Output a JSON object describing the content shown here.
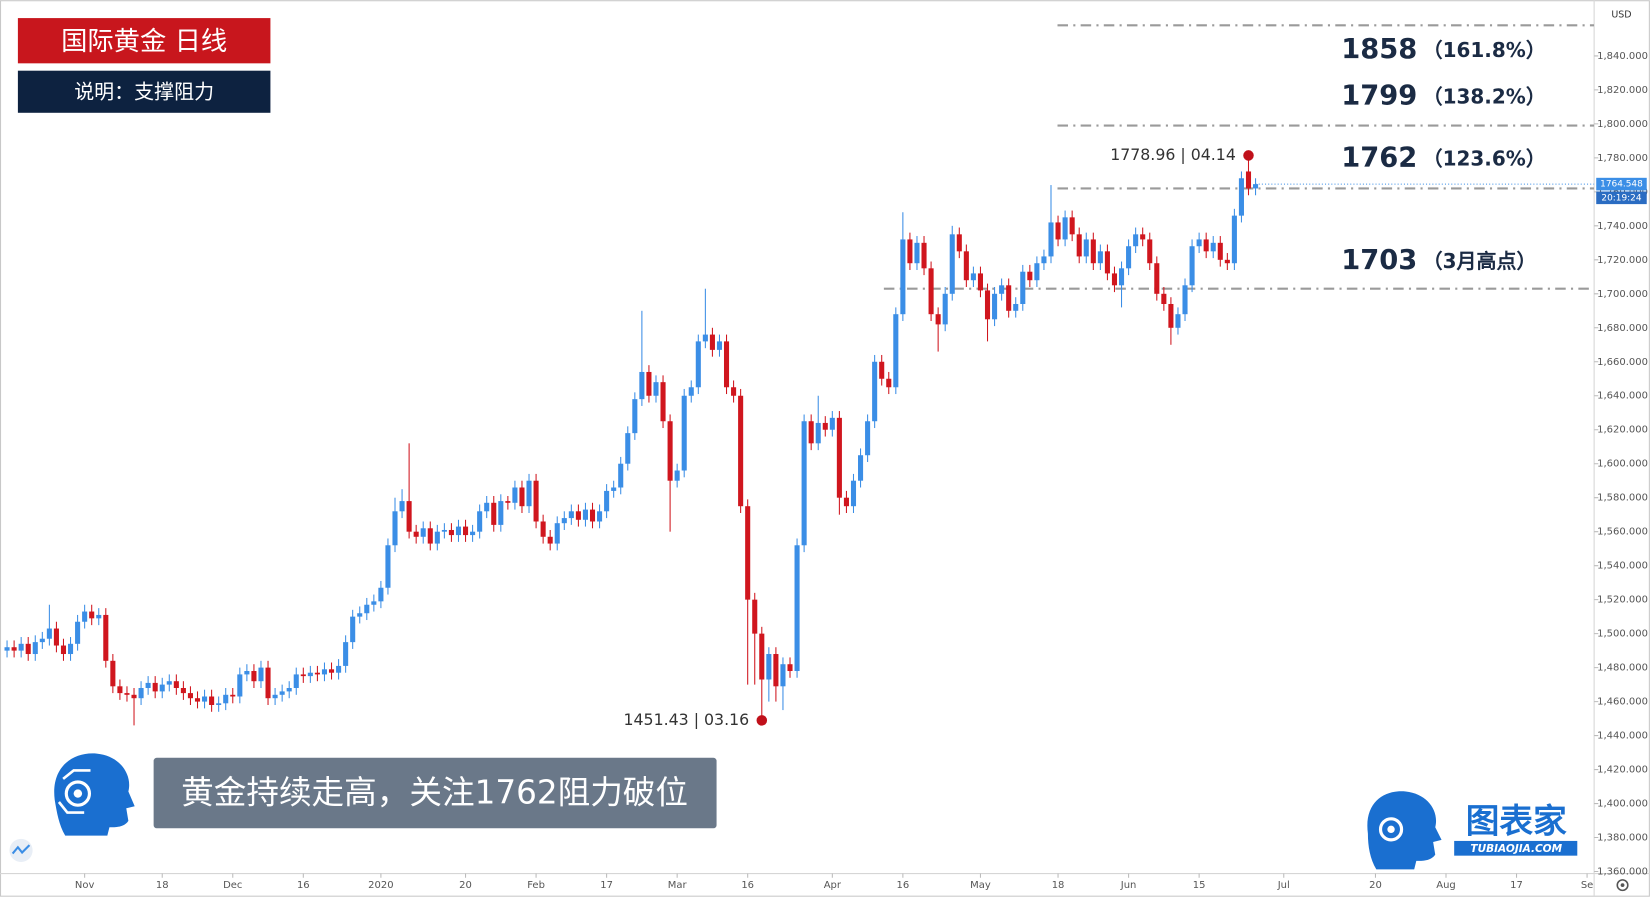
{
  "chart_data": {
    "type": "candlestick",
    "title": "国际黄金  日线",
    "subtitle": "说明：支撑阻力",
    "banner": "黄金持续走高，关注1762阻力破位",
    "brand": "图表家",
    "brand_url": "TUBIAOJIA.COM",
    "currency": "USD",
    "countdown": "20:19:24",
    "up_color": "#3b8ee6",
    "down_color": "#d0161e",
    "xlim": [
      -12,
      214
    ],
    "ylim": [
      1358.8,
      1869.7
    ],
    "xticks": [
      {
        "value": 0,
        "label": "Nov"
      },
      {
        "value": 11,
        "label": "18"
      },
      {
        "value": 21,
        "label": "Dec"
      },
      {
        "value": 31,
        "label": "16"
      },
      {
        "value": 42,
        "label": "2020"
      },
      {
        "value": 54,
        "label": "20"
      },
      {
        "value": 64,
        "label": "Feb"
      },
      {
        "value": 74,
        "label": "17"
      },
      {
        "value": 84,
        "label": "Mar"
      },
      {
        "value": 94,
        "label": "16"
      },
      {
        "value": 106,
        "label": "Apr"
      },
      {
        "value": 116,
        "label": "16"
      },
      {
        "value": 127,
        "label": "May"
      },
      {
        "value": 138,
        "label": "18"
      },
      {
        "value": 148,
        "label": "Jun"
      },
      {
        "value": 158,
        "label": "15"
      },
      {
        "value": 170,
        "label": "Jul"
      },
      {
        "value": 183,
        "label": "20"
      },
      {
        "value": 193,
        "label": "Aug"
      },
      {
        "value": 203,
        "label": "17"
      },
      {
        "value": 213,
        "label": "Se"
      }
    ],
    "yticks": [
      {
        "value": 1360,
        "label": "1,360.000"
      },
      {
        "value": 1380,
        "label": "1,380.000"
      },
      {
        "value": 1400,
        "label": "1,400.000"
      },
      {
        "value": 1420,
        "label": "1,420.000"
      },
      {
        "value": 1440,
        "label": "1,440.000"
      },
      {
        "value": 1460,
        "label": "1,460.000"
      },
      {
        "value": 1480,
        "label": "1,480.000"
      },
      {
        "value": 1500,
        "label": "1,500.000"
      },
      {
        "value": 1520,
        "label": "1,520.000"
      },
      {
        "value": 1540,
        "label": "1,540.000"
      },
      {
        "value": 1560,
        "label": "1,560.000"
      },
      {
        "value": 1580,
        "label": "1,580.000"
      },
      {
        "value": 1600,
        "label": "1,600.000"
      },
      {
        "value": 1620,
        "label": "1,620.000"
      },
      {
        "value": 1640,
        "label": "1,640.000"
      },
      {
        "value": 1660,
        "label": "1,660.000"
      },
      {
        "value": 1680,
        "label": "1,680.000"
      },
      {
        "value": 1700,
        "label": "1,700.000"
      },
      {
        "value": 1720,
        "label": "1,720.000"
      },
      {
        "value": 1740,
        "label": "1,740.000"
      },
      {
        "value": 1760,
        "label": "1,760.000"
      },
      {
        "value": 1780,
        "label": "1,780.000"
      },
      {
        "value": 1800,
        "label": "1,800.000"
      },
      {
        "value": 1820,
        "label": "1,820.000"
      },
      {
        "value": 1840,
        "label": "1,840.000"
      }
    ],
    "levels": [
      {
        "value": 1858,
        "ratio": "（161.8%）"
      },
      {
        "value": 1799,
        "ratio": "（138.2%）"
      },
      {
        "value": 1762,
        "ratio": "（123.6%）"
      },
      {
        "value": 1703,
        "ratio": "（3月高点）"
      }
    ],
    "annotations": [
      {
        "text": "1778.96 | 04.14",
        "value": 1778.96
      },
      {
        "text": "1451.43 | 03.16",
        "value": 1451.43
      }
    ],
    "x": [
      -11,
      -10,
      -9,
      -8,
      -7,
      -6,
      -5,
      -4,
      -3,
      -2,
      -1,
      0,
      1,
      2,
      3,
      4,
      5,
      6,
      7,
      8,
      9,
      10,
      11,
      12,
      13,
      14,
      15,
      16,
      17,
      18,
      19,
      20,
      21,
      22,
      23,
      24,
      25,
      26,
      27,
      28,
      29,
      30,
      31,
      32,
      33,
      34,
      35,
      36,
      37,
      38,
      39,
      40,
      41,
      42,
      43,
      44,
      45,
      46,
      47,
      48,
      49,
      50,
      51,
      52,
      53,
      54,
      55,
      56,
      57,
      58,
      59,
      60,
      61,
      62,
      63,
      64,
      65,
      66,
      67,
      68,
      69,
      70,
      71,
      72,
      73,
      74,
      75,
      76,
      77,
      78,
      79,
      80,
      81,
      82,
      83,
      84,
      85,
      86,
      87,
      88,
      89,
      90,
      91,
      92,
      93,
      94,
      95,
      96,
      97,
      98,
      99,
      100,
      101,
      102,
      103,
      104,
      105,
      106,
      107,
      108,
      109,
      110,
      111,
      112,
      113,
      114,
      115,
      116,
      117,
      118,
      119,
      120,
      121,
      122,
      123,
      124,
      125,
      126,
      127,
      128,
      129,
      130,
      131,
      132,
      133,
      134,
      135,
      136,
      137,
      138,
      139,
      140,
      141,
      142,
      143,
      144,
      145,
      146,
      147,
      148,
      149,
      150,
      151,
      152,
      153,
      154,
      155,
      156,
      157,
      158,
      159,
      160,
      161,
      162,
      163,
      164,
      165,
      166
    ],
    "open": [
      1490,
      1492,
      1490,
      1494,
      1488,
      1495,
      1497,
      1503,
      1493,
      1488,
      1494,
      1507,
      1513,
      1509,
      1511,
      1484,
      1469,
      1465,
      1464,
      1462,
      1468,
      1471,
      1466,
      1470,
      1472,
      1468,
      1465,
      1462,
      1460,
      1463,
      1458,
      1459,
      1464,
      1463,
      1476,
      1478,
      1472,
      1480,
      1462,
      1464,
      1466,
      1468,
      1476,
      1475,
      1477,
      1476,
      1479,
      1477,
      1481,
      1495,
      1510,
      1512,
      1517,
      1519,
      1527,
      1552,
      1572,
      1578,
      1560,
      1557,
      1562,
      1553,
      1560,
      1561,
      1558,
      1563,
      1558,
      1560,
      1572,
      1577,
      1564,
      1578,
      1577,
      1586,
      1575,
      1590,
      1566,
      1557,
      1553,
      1565,
      1568,
      1572,
      1567,
      1573,
      1566,
      1572,
      1584,
      1586,
      1600,
      1618,
      1638,
      1654,
      1640,
      1648,
      1625,
      1590,
      1596,
      1640,
      1645,
      1672,
      1676,
      1667,
      1672,
      1645,
      1640,
      1575,
      1520,
      1500,
      1473,
      1488,
      1469,
      1482,
      1478,
      1552,
      1625,
      1612,
      1624,
      1620,
      1627,
      1580,
      1575,
      1590,
      1605,
      1625,
      1660,
      1650,
      1645,
      1688,
      1732,
      1718,
      1730,
      1715,
      1688,
      1682,
      1700,
      1735,
      1725,
      1708,
      1712,
      1702,
      1685,
      1700,
      1705,
      1690,
      1694,
      1713,
      1708,
      1718,
      1722,
      1742,
      1732,
      1745,
      1735,
      1722,
      1732,
      1718,
      1725,
      1712,
      1705,
      1715,
      1728,
      1735,
      1732,
      1718,
      1700,
      1694,
      1680,
      1688,
      1705,
      1728,
      1732,
      1725,
      1730,
      1720,
      1718,
      1746,
      1772,
      1762
    ],
    "high": [
      1496,
      1496,
      1498,
      1498,
      1499,
      1501,
      1517,
      1507,
      1497,
      1498,
      1511,
      1517,
      1517,
      1515,
      1515,
      1488,
      1473,
      1469,
      1468,
      1472,
      1475,
      1475,
      1474,
      1476,
      1476,
      1472,
      1469,
      1466,
      1467,
      1467,
      1463,
      1468,
      1468,
      1480,
      1482,
      1482,
      1484,
      1484,
      1468,
      1470,
      1472,
      1480,
      1480,
      1481,
      1481,
      1483,
      1483,
      1485,
      1499,
      1514,
      1516,
      1521,
      1523,
      1531,
      1556,
      1580,
      1585,
      1612,
      1564,
      1566,
      1566,
      1564,
      1565,
      1565,
      1567,
      1567,
      1564,
      1576,
      1581,
      1581,
      1582,
      1581,
      1590,
      1590,
      1594,
      1594,
      1570,
      1561,
      1569,
      1572,
      1576,
      1576,
      1577,
      1577,
      1576,
      1588,
      1590,
      1604,
      1622,
      1642,
      1690,
      1658,
      1652,
      1652,
      1629,
      1600,
      1644,
      1649,
      1676,
      1703,
      1680,
      1676,
      1676,
      1649,
      1644,
      1579,
      1524,
      1504,
      1492,
      1492,
      1486,
      1486,
      1556,
      1629,
      1629,
      1640,
      1628,
      1631,
      1631,
      1584,
      1594,
      1609,
      1629,
      1664,
      1664,
      1654,
      1692,
      1748,
      1736,
      1734,
      1734,
      1719,
      1692,
      1704,
      1740,
      1739,
      1729,
      1716,
      1716,
      1706,
      1704,
      1709,
      1709,
      1698,
      1717,
      1717,
      1722,
      1726,
      1764,
      1746,
      1749,
      1749,
      1739,
      1736,
      1736,
      1729,
      1729,
      1716,
      1719,
      1732,
      1739,
      1739,
      1736,
      1722,
      1704,
      1698,
      1692,
      1709,
      1732,
      1736,
      1736,
      1734,
      1734,
      1724,
      1750,
      1772,
      1778.96,
      1768
    ],
    "low": [
      1486,
      1486,
      1486,
      1484,
      1484,
      1491,
      1493,
      1489,
      1484,
      1484,
      1490,
      1503,
      1505,
      1505,
      1480,
      1465,
      1461,
      1460,
      1446,
      1458,
      1464,
      1462,
      1462,
      1466,
      1464,
      1461,
      1458,
      1456,
      1456,
      1454,
      1454,
      1455,
      1459,
      1459,
      1472,
      1468,
      1468,
      1458,
      1458,
      1460,
      1462,
      1464,
      1471,
      1471,
      1472,
      1472,
      1473,
      1473,
      1477,
      1491,
      1506,
      1508,
      1513,
      1515,
      1523,
      1548,
      1568,
      1556,
      1553,
      1553,
      1549,
      1549,
      1556,
      1554,
      1554,
      1554,
      1554,
      1556,
      1568,
      1560,
      1560,
      1573,
      1573,
      1571,
      1571,
      1562,
      1553,
      1549,
      1549,
      1561,
      1564,
      1563,
      1563,
      1562,
      1562,
      1568,
      1580,
      1582,
      1596,
      1614,
      1634,
      1636,
      1636,
      1621,
      1560,
      1586,
      1592,
      1636,
      1641,
      1668,
      1663,
      1663,
      1641,
      1636,
      1571,
      1470,
      1470,
      1451.43,
      1460,
      1460,
      1455,
      1474,
      1474,
      1548,
      1608,
      1608,
      1616,
      1616,
      1570,
      1571,
      1571,
      1586,
      1601,
      1621,
      1646,
      1641,
      1641,
      1684,
      1714,
      1714,
      1711,
      1684,
      1666,
      1678,
      1696,
      1721,
      1704,
      1704,
      1698,
      1672,
      1681,
      1696,
      1686,
      1686,
      1690,
      1704,
      1704,
      1714,
      1718,
      1728,
      1728,
      1731,
      1718,
      1718,
      1714,
      1714,
      1708,
      1701,
      1692,
      1711,
      1724,
      1728,
      1714,
      1696,
      1690,
      1670,
      1676,
      1684,
      1701,
      1724,
      1721,
      1721,
      1716,
      1714,
      1714,
      1742,
      1758,
      1758
    ],
    "close": [
      1492,
      1490,
      1494,
      1488,
      1495,
      1497,
      1503,
      1493,
      1488,
      1494,
      1507,
      1513,
      1509,
      1511,
      1484,
      1469,
      1465,
      1464,
      1462,
      1468,
      1471,
      1466,
      1470,
      1472,
      1468,
      1465,
      1462,
      1460,
      1463,
      1458,
      1459,
      1464,
      1463,
      1476,
      1478,
      1472,
      1480,
      1462,
      1464,
      1466,
      1468,
      1476,
      1475,
      1477,
      1476,
      1479,
      1477,
      1481,
      1495,
      1510,
      1512,
      1517,
      1519,
      1527,
      1552,
      1572,
      1578,
      1560,
      1557,
      1562,
      1553,
      1560,
      1561,
      1558,
      1563,
      1558,
      1560,
      1572,
      1577,
      1564,
      1578,
      1577,
      1586,
      1575,
      1590,
      1566,
      1557,
      1553,
      1565,
      1568,
      1572,
      1567,
      1573,
      1566,
      1572,
      1584,
      1586,
      1600,
      1618,
      1638,
      1654,
      1640,
      1648,
      1625,
      1590,
      1596,
      1640,
      1645,
      1672,
      1676,
      1667,
      1672,
      1645,
      1640,
      1575,
      1520,
      1500,
      1473,
      1488,
      1469,
      1482,
      1478,
      1552,
      1625,
      1612,
      1624,
      1620,
      1627,
      1580,
      1575,
      1590,
      1605,
      1625,
      1660,
      1650,
      1645,
      1688,
      1732,
      1718,
      1730,
      1715,
      1688,
      1682,
      1700,
      1735,
      1725,
      1708,
      1712,
      1702,
      1685,
      1700,
      1705,
      1690,
      1694,
      1713,
      1708,
      1718,
      1722,
      1742,
      1732,
      1745,
      1735,
      1722,
      1732,
      1718,
      1725,
      1712,
      1705,
      1715,
      1728,
      1735,
      1732,
      1718,
      1700,
      1694,
      1680,
      1688,
      1705,
      1728,
      1732,
      1725,
      1730,
      1720,
      1718,
      1746,
      1768,
      1762,
      1764.548
    ]
  }
}
